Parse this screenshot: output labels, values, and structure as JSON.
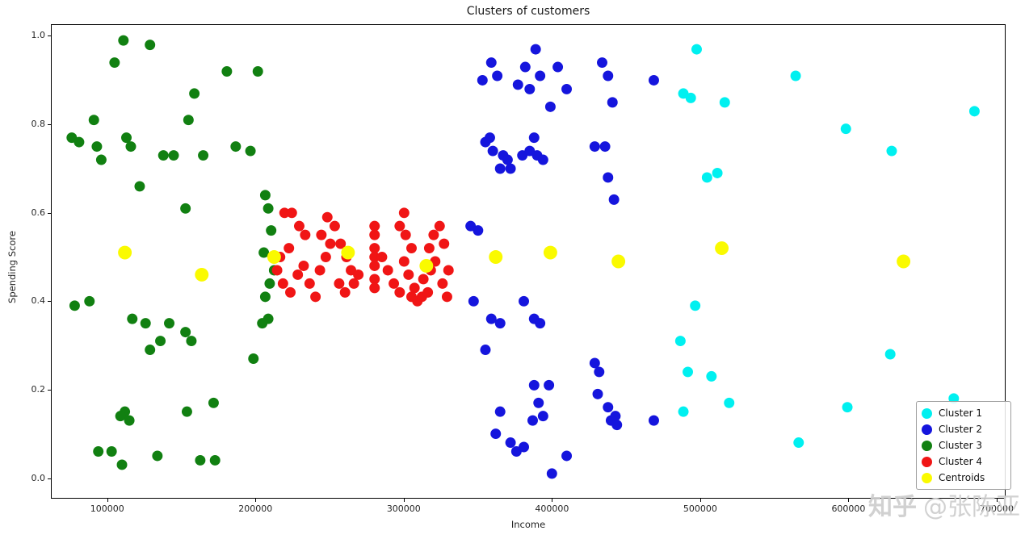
{
  "page": {
    "watermark_brand": "知乎",
    "watermark_user": "@张陈亚"
  },
  "chart_data": {
    "type": "scatter",
    "title": "Clusters of customers",
    "xlabel": "Income",
    "ylabel": "Spending Score",
    "xlim": [
      62000,
      706000
    ],
    "ylim": [
      -0.045,
      1.025
    ],
    "grid": false,
    "legend_position": "lower right",
    "x_ticks": [
      {
        "value": 100000,
        "label": "100000"
      },
      {
        "value": 200000,
        "label": "200000"
      },
      {
        "value": 300000,
        "label": "300000"
      },
      {
        "value": 400000,
        "label": "400000"
      },
      {
        "value": 500000,
        "label": "500000"
      },
      {
        "value": 600000,
        "label": "600000"
      },
      {
        "value": 700000,
        "label": "700000"
      }
    ],
    "y_ticks": [
      {
        "value": 0.0,
        "label": "0.0"
      },
      {
        "value": 0.2,
        "label": "0.2"
      },
      {
        "value": 0.4,
        "label": "0.4"
      },
      {
        "value": 0.6,
        "label": "0.6"
      },
      {
        "value": 0.8,
        "label": "0.8"
      },
      {
        "value": 1.0,
        "label": "1.0"
      }
    ],
    "series": [
      {
        "name": "Cluster 1",
        "color": "#00F0F0",
        "radius": 6.5,
        "points": [
          [
            489000,
            0.87
          ],
          [
            494000,
            0.86
          ],
          [
            498000,
            0.97
          ],
          [
            517000,
            0.85
          ],
          [
            505000,
            0.68
          ],
          [
            512000,
            0.69
          ],
          [
            497000,
            0.39
          ],
          [
            487000,
            0.31
          ],
          [
            492000,
            0.24
          ],
          [
            508000,
            0.23
          ],
          [
            489000,
            0.15
          ],
          [
            520000,
            0.17
          ],
          [
            565000,
            0.91
          ],
          [
            599000,
            0.79
          ],
          [
            630000,
            0.74
          ],
          [
            567000,
            0.08
          ],
          [
            600000,
            0.16
          ],
          [
            629000,
            0.28
          ],
          [
            672000,
            0.18
          ],
          [
            686000,
            0.83
          ]
        ]
      },
      {
        "name": "Cluster 2",
        "color": "#1515DD",
        "radius": 6.5,
        "points": [
          [
            353000,
            0.9
          ],
          [
            359000,
            0.94
          ],
          [
            363000,
            0.91
          ],
          [
            377000,
            0.89
          ],
          [
            382000,
            0.93
          ],
          [
            385000,
            0.88
          ],
          [
            389000,
            0.97
          ],
          [
            392000,
            0.91
          ],
          [
            399000,
            0.84
          ],
          [
            404000,
            0.93
          ],
          [
            410000,
            0.88
          ],
          [
            434000,
            0.94
          ],
          [
            438000,
            0.91
          ],
          [
            441000,
            0.85
          ],
          [
            469000,
            0.9
          ],
          [
            355000,
            0.76
          ],
          [
            358000,
            0.77
          ],
          [
            360000,
            0.74
          ],
          [
            367000,
            0.73
          ],
          [
            370000,
            0.72
          ],
          [
            365000,
            0.7
          ],
          [
            372000,
            0.7
          ],
          [
            380000,
            0.73
          ],
          [
            385000,
            0.74
          ],
          [
            388000,
            0.77
          ],
          [
            390000,
            0.73
          ],
          [
            394000,
            0.72
          ],
          [
            429000,
            0.75
          ],
          [
            436000,
            0.75
          ],
          [
            438000,
            0.68
          ],
          [
            442000,
            0.63
          ],
          [
            345000,
            0.57
          ],
          [
            350000,
            0.56
          ],
          [
            347000,
            0.4
          ],
          [
            359000,
            0.36
          ],
          [
            365000,
            0.35
          ],
          [
            355000,
            0.29
          ],
          [
            381000,
            0.4
          ],
          [
            388000,
            0.36
          ],
          [
            392000,
            0.35
          ],
          [
            362000,
            0.1
          ],
          [
            365000,
            0.15
          ],
          [
            372000,
            0.08
          ],
          [
            376000,
            0.06
          ],
          [
            381000,
            0.07
          ],
          [
            388000,
            0.21
          ],
          [
            391000,
            0.17
          ],
          [
            387000,
            0.13
          ],
          [
            394000,
            0.14
          ],
          [
            398000,
            0.21
          ],
          [
            400000,
            0.01
          ],
          [
            410000,
            0.05
          ],
          [
            429000,
            0.26
          ],
          [
            432000,
            0.24
          ],
          [
            431000,
            0.19
          ],
          [
            438000,
            0.16
          ],
          [
            440000,
            0.13
          ],
          [
            443000,
            0.14
          ],
          [
            444000,
            0.12
          ],
          [
            469000,
            0.13
          ]
        ]
      },
      {
        "name": "Cluster 3",
        "color": "#118011",
        "radius": 6.5,
        "points": [
          [
            90000,
            0.81
          ],
          [
            75000,
            0.77
          ],
          [
            80000,
            0.76
          ],
          [
            92000,
            0.75
          ],
          [
            95000,
            0.72
          ],
          [
            110000,
            0.99
          ],
          [
            128000,
            0.98
          ],
          [
            104000,
            0.94
          ],
          [
            112000,
            0.77
          ],
          [
            115000,
            0.75
          ],
          [
            121000,
            0.66
          ],
          [
            137000,
            0.73
          ],
          [
            144000,
            0.73
          ],
          [
            158000,
            0.87
          ],
          [
            154000,
            0.81
          ],
          [
            164000,
            0.73
          ],
          [
            180000,
            0.92
          ],
          [
            201000,
            0.92
          ],
          [
            186000,
            0.75
          ],
          [
            196000,
            0.74
          ],
          [
            152000,
            0.61
          ],
          [
            206000,
            0.64
          ],
          [
            208000,
            0.61
          ],
          [
            210000,
            0.56
          ],
          [
            205000,
            0.51
          ],
          [
            212000,
            0.47
          ],
          [
            209000,
            0.44
          ],
          [
            206000,
            0.41
          ],
          [
            208000,
            0.36
          ],
          [
            204000,
            0.35
          ],
          [
            198000,
            0.27
          ],
          [
            87000,
            0.4
          ],
          [
            77000,
            0.39
          ],
          [
            116000,
            0.36
          ],
          [
            125000,
            0.35
          ],
          [
            141000,
            0.35
          ],
          [
            135000,
            0.31
          ],
          [
            152000,
            0.33
          ],
          [
            156000,
            0.31
          ],
          [
            128000,
            0.29
          ],
          [
            111000,
            0.15
          ],
          [
            108000,
            0.14
          ],
          [
            114000,
            0.13
          ],
          [
            153000,
            0.15
          ],
          [
            171000,
            0.17
          ],
          [
            93000,
            0.06
          ],
          [
            102000,
            0.06
          ],
          [
            109000,
            0.03
          ],
          [
            133000,
            0.05
          ],
          [
            162000,
            0.04
          ],
          [
            172000,
            0.04
          ]
        ]
      },
      {
        "name": "Cluster 4",
        "color": "#F01515",
        "radius": 6.5,
        "points": [
          [
            219000,
            0.6
          ],
          [
            224000,
            0.6
          ],
          [
            229000,
            0.57
          ],
          [
            233000,
            0.55
          ],
          [
            222000,
            0.52
          ],
          [
            216000,
            0.5
          ],
          [
            214000,
            0.47
          ],
          [
            218000,
            0.44
          ],
          [
            223000,
            0.42
          ],
          [
            228000,
            0.46
          ],
          [
            232000,
            0.48
          ],
          [
            236000,
            0.44
          ],
          [
            240000,
            0.41
          ],
          [
            243000,
            0.47
          ],
          [
            247000,
            0.5
          ],
          [
            250000,
            0.53
          ],
          [
            244000,
            0.55
          ],
          [
            248000,
            0.59
          ],
          [
            253000,
            0.57
          ],
          [
            257000,
            0.53
          ],
          [
            261000,
            0.5
          ],
          [
            264000,
            0.47
          ],
          [
            256000,
            0.44
          ],
          [
            260000,
            0.42
          ],
          [
            266000,
            0.44
          ],
          [
            269000,
            0.46
          ],
          [
            280000,
            0.57
          ],
          [
            280000,
            0.55
          ],
          [
            280000,
            0.52
          ],
          [
            280000,
            0.5
          ],
          [
            280000,
            0.48
          ],
          [
            280000,
            0.45
          ],
          [
            280000,
            0.43
          ],
          [
            285000,
            0.5
          ],
          [
            289000,
            0.47
          ],
          [
            293000,
            0.44
          ],
          [
            297000,
            0.42
          ],
          [
            300000,
            0.6
          ],
          [
            297000,
            0.57
          ],
          [
            301000,
            0.55
          ],
          [
            305000,
            0.52
          ],
          [
            300000,
            0.49
          ],
          [
            303000,
            0.46
          ],
          [
            307000,
            0.43
          ],
          [
            305000,
            0.41
          ],
          [
            309000,
            0.4
          ],
          [
            312000,
            0.41
          ],
          [
            316000,
            0.42
          ],
          [
            313000,
            0.45
          ],
          [
            318000,
            0.47
          ],
          [
            321000,
            0.49
          ],
          [
            317000,
            0.52
          ],
          [
            320000,
            0.55
          ],
          [
            324000,
            0.57
          ],
          [
            327000,
            0.53
          ],
          [
            330000,
            0.47
          ],
          [
            326000,
            0.44
          ],
          [
            329000,
            0.41
          ]
        ]
      },
      {
        "name": "Centroids",
        "color": "#FAFA00",
        "radius": 8.5,
        "points": [
          [
            111000,
            0.51
          ],
          [
            163000,
            0.46
          ],
          [
            212000,
            0.5
          ],
          [
            262000,
            0.51
          ],
          [
            315000,
            0.48
          ],
          [
            362000,
            0.5
          ],
          [
            399000,
            0.51
          ],
          [
            445000,
            0.49
          ],
          [
            515000,
            0.52
          ],
          [
            638000,
            0.49
          ]
        ]
      }
    ]
  }
}
